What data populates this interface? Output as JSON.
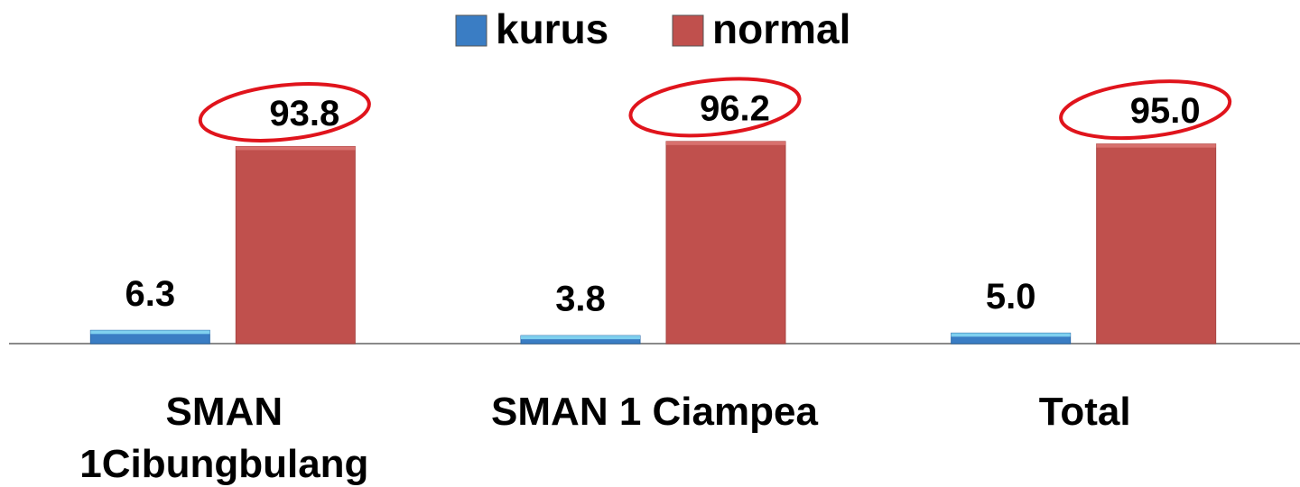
{
  "chart_data": {
    "type": "bar",
    "categories": [
      "SMAN 1Cibungbulang",
      "SMAN 1 Ciampea",
      "Total"
    ],
    "series": [
      {
        "name": "kurus",
        "color": "#3a7dc4",
        "values": [
          6.3,
          3.8,
          5.0
        ],
        "value_labels": [
          "6.3",
          "3.8",
          "5.0"
        ]
      },
      {
        "name": "normal",
        "color": "#c0504d",
        "values": [
          93.8,
          96.2,
          95.0
        ],
        "value_labels": [
          "93.8",
          "96.2",
          "95.0"
        ]
      }
    ],
    "legend": "top"
  }
}
